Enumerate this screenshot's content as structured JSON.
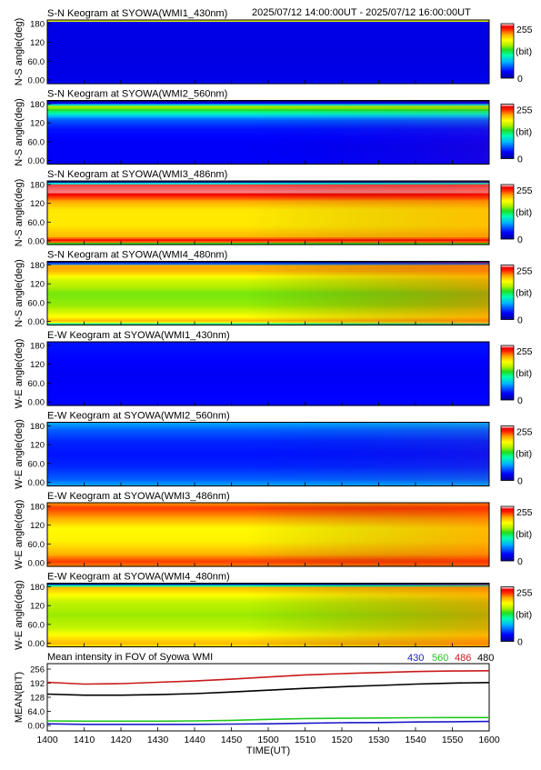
{
  "header": {
    "time_range": "2025/07/12 14:00:00UT - 2025/07/12 16:00:00UT"
  },
  "colorbar": {
    "max_label": "255",
    "unit_label": "(bit)",
    "min_label": "0"
  },
  "keograms": [
    {
      "title": "S-N Keogram at SYOWA(WMI1_430nm)",
      "ylabel": "N-S angle(deg)",
      "yticks": [
        "180",
        "120",
        "60.0",
        "0.00"
      ],
      "profile": [
        [
          0,
          210
        ],
        [
          0.015,
          170
        ],
        [
          0.03,
          25
        ],
        [
          0.5,
          22
        ],
        [
          0.97,
          25
        ],
        [
          1,
          40
        ]
      ],
      "trend": 0
    },
    {
      "title": "S-N Keogram at SYOWA(WMI2_560nm)",
      "ylabel": "N-S angle(deg)",
      "yticks": [
        "180",
        "120",
        "60.0",
        "0.00"
      ],
      "profile": [
        [
          0,
          0
        ],
        [
          0.03,
          0
        ],
        [
          0.1,
          160
        ],
        [
          0.2,
          105
        ],
        [
          0.3,
          55
        ],
        [
          0.45,
          35
        ],
        [
          0.7,
          28
        ],
        [
          1,
          30
        ]
      ],
      "trend": 5
    },
    {
      "title": "S-N Keogram at SYOWA(WMI3_486nm)",
      "ylabel": "N-S angle(deg)",
      "yticks": [
        "180",
        "120",
        "60.0",
        "0.00"
      ],
      "profile": [
        [
          0,
          0
        ],
        [
          0.03,
          0
        ],
        [
          0.06,
          245
        ],
        [
          0.18,
          248
        ],
        [
          0.32,
          205
        ],
        [
          0.45,
          185
        ],
        [
          0.7,
          185
        ],
        [
          0.88,
          200
        ],
        [
          0.93,
          235
        ],
        [
          0.97,
          210
        ],
        [
          1,
          70
        ]
      ],
      "trend": 12
    },
    {
      "title": "S-N Keogram at SYOWA(WMI4_480nm)",
      "ylabel": "N-S angle(deg)",
      "yticks": [
        "180",
        "120",
        "60.0",
        "0.00"
      ],
      "profile": [
        [
          0,
          0
        ],
        [
          0.03,
          0
        ],
        [
          0.07,
          205
        ],
        [
          0.15,
          200
        ],
        [
          0.3,
          165
        ],
        [
          0.5,
          145
        ],
        [
          0.7,
          150
        ],
        [
          0.88,
          180
        ],
        [
          0.95,
          205
        ],
        [
          1,
          70
        ]
      ],
      "trend": 22
    },
    {
      "title": "E-W Keogram at SYOWA(WMI1_430nm)",
      "ylabel": "W-E angle(deg)",
      "yticks": [
        "180",
        "120",
        "60.0",
        "0.00"
      ],
      "profile": [
        [
          0,
          35
        ],
        [
          0.5,
          28
        ],
        [
          1,
          32
        ]
      ],
      "trend": 0
    },
    {
      "title": "E-W Keogram at SYOWA(WMI2_560nm)",
      "ylabel": "W-E angle(deg)",
      "yticks": [
        "180",
        "120",
        "60.0",
        "0.00"
      ],
      "profile": [
        [
          0,
          75
        ],
        [
          0.12,
          55
        ],
        [
          0.3,
          40
        ],
        [
          0.5,
          35
        ],
        [
          0.7,
          40
        ],
        [
          0.9,
          55
        ],
        [
          1,
          75
        ]
      ],
      "trend": 4
    },
    {
      "title": "E-W Keogram at SYOWA(WMI3_486nm)",
      "ylabel": "W-E angle(deg)",
      "yticks": [
        "180",
        "120",
        "60.0",
        "0.00"
      ],
      "profile": [
        [
          0,
          205
        ],
        [
          0.08,
          225
        ],
        [
          0.2,
          210
        ],
        [
          0.4,
          180
        ],
        [
          0.6,
          182
        ],
        [
          0.8,
          200
        ],
        [
          0.92,
          225
        ],
        [
          1,
          210
        ]
      ],
      "trend": 18
    },
    {
      "title": "E-W Keogram at SYOWA(WMI4_480nm)",
      "ylabel": "W-E angle(deg)",
      "yticks": [
        "180",
        "120",
        "60.0",
        "0.00"
      ],
      "profile": [
        [
          0,
          0
        ],
        [
          0.02,
          0
        ],
        [
          0.06,
          200
        ],
        [
          0.15,
          185
        ],
        [
          0.3,
          160
        ],
        [
          0.5,
          150
        ],
        [
          0.7,
          160
        ],
        [
          0.85,
          185
        ],
        [
          0.95,
          200
        ],
        [
          1,
          180
        ]
      ],
      "trend": 20
    }
  ],
  "chart_data": {
    "type": "line",
    "title": "Mean intensity in FOV of Syowa WMI",
    "xlabel": "TIME(UT)",
    "ylabel": "MEAN(BIT)",
    "xlim": [
      0,
      120
    ],
    "ylim": [
      0,
      256
    ],
    "xtick_labels": [
      "1400",
      "1410",
      "1420",
      "1430",
      "1440",
      "1450",
      "1500",
      "1510",
      "1520",
      "1530",
      "1540",
      "1550",
      "1600"
    ],
    "ytick_labels": [
      "256",
      "192",
      "128",
      "64.0",
      "0.00"
    ],
    "legend": [
      {
        "label": "430",
        "color": "#1a1ac8"
      },
      {
        "label": "560",
        "color": "#1fc81f"
      },
      {
        "label": "486",
        "color": "#c81a1a"
      },
      {
        "label": "480",
        "color": "#000000"
      }
    ],
    "x": [
      0,
      10,
      20,
      30,
      40,
      50,
      60,
      70,
      80,
      90,
      100,
      110,
      120
    ],
    "series": [
      {
        "name": "430",
        "color": "#1a1ac8",
        "values": [
          27,
          25,
          25,
          25,
          25,
          26,
          27,
          29,
          31,
          32,
          34,
          35,
          36
        ]
      },
      {
        "name": "560",
        "color": "#1fc81f",
        "values": [
          38,
          37,
          37,
          37,
          38,
          40,
          44,
          47,
          48,
          49,
          50,
          51,
          51
        ]
      },
      {
        "name": "486",
        "color": "#c81a1a",
        "values": [
          185,
          178,
          180,
          185,
          190,
          197,
          205,
          213,
          218,
          222,
          226,
          228,
          229
        ]
      },
      {
        "name": "480",
        "color": "#000000",
        "values": [
          140,
          136,
          136,
          138,
          142,
          148,
          155,
          162,
          168,
          173,
          178,
          182,
          184
        ]
      }
    ]
  }
}
